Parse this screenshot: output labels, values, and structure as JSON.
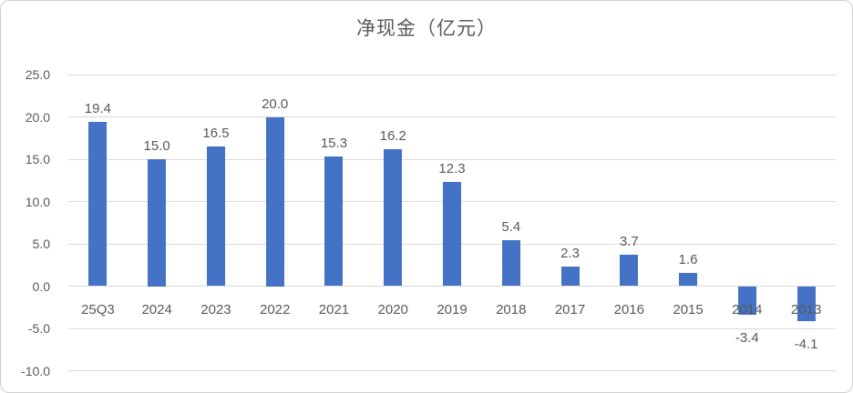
{
  "title": "净现金（亿元）",
  "chart_data": {
    "type": "bar",
    "title": "净现金（亿元）",
    "categories": [
      "25Q3",
      "2024",
      "2023",
      "2022",
      "2021",
      "2020",
      "2019",
      "2018",
      "2017",
      "2016",
      "2015",
      "2014",
      "2013"
    ],
    "values": [
      19.4,
      15.0,
      16.5,
      20.0,
      15.3,
      16.2,
      12.3,
      5.4,
      2.3,
      3.7,
      1.6,
      -3.4,
      -4.1
    ],
    "data_labels": [
      "19.4",
      "15.0",
      "16.5",
      "20.0",
      "15.3",
      "16.2",
      "12.3",
      "5.4",
      "2.3",
      "3.7",
      "1.6",
      "-3.4",
      "-4.1"
    ],
    "xlabel": "",
    "ylabel": "",
    "ylim": [
      -10.0,
      25.0
    ],
    "ytick_step": 5.0,
    "yticks": [
      "25.0",
      "20.0",
      "15.0",
      "10.0",
      "5.0",
      "0.0",
      "-5.0",
      "-10.0"
    ],
    "grid": true,
    "legend": "none",
    "bar_color": "#4472C4",
    "gridline_color": "#D9D9D9",
    "text_color": "#595959",
    "frame_border_color": "#CFCFCF",
    "background_color": "#FFFFFF"
  }
}
